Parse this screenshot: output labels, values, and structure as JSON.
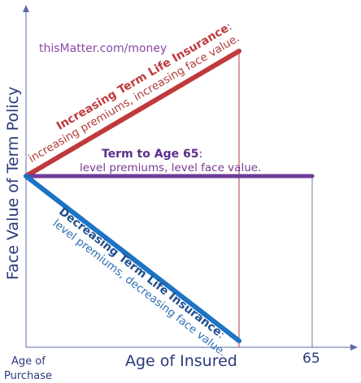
{
  "watermark": "thisMatter.com/money",
  "axes": {
    "ylabel": "Face Value of Term Policy",
    "xlabel": "Age of Insured",
    "origin_label_line1": "Age of",
    "origin_label_line2": "Purchase",
    "end_tick_label": "65"
  },
  "policies": {
    "increasing": {
      "title": "Increasing Term Life Insurance",
      "suffix": ":",
      "description": "increasing premiums, increasing face value.",
      "color": "#c0393b"
    },
    "level": {
      "title": "Term to Age 65",
      "suffix": ":",
      "description": "level premiums, level face value.",
      "color": "#6f3d9b"
    },
    "decreasing": {
      "title": "Decreasing Term Life Insurance",
      "suffix": ":",
      "description": "level premiums, decreasing face value.",
      "color": "#1b74c4"
    }
  },
  "colors": {
    "axis": "#5b6aa8",
    "axis_label": "#2a3a7a",
    "watermark": "#8a4aa6",
    "description": "#7a3a8c",
    "decreasing_text": "#2f6fb5",
    "decreasing_title": "#1f4f8f",
    "level_title": "#5a2f8a"
  }
}
